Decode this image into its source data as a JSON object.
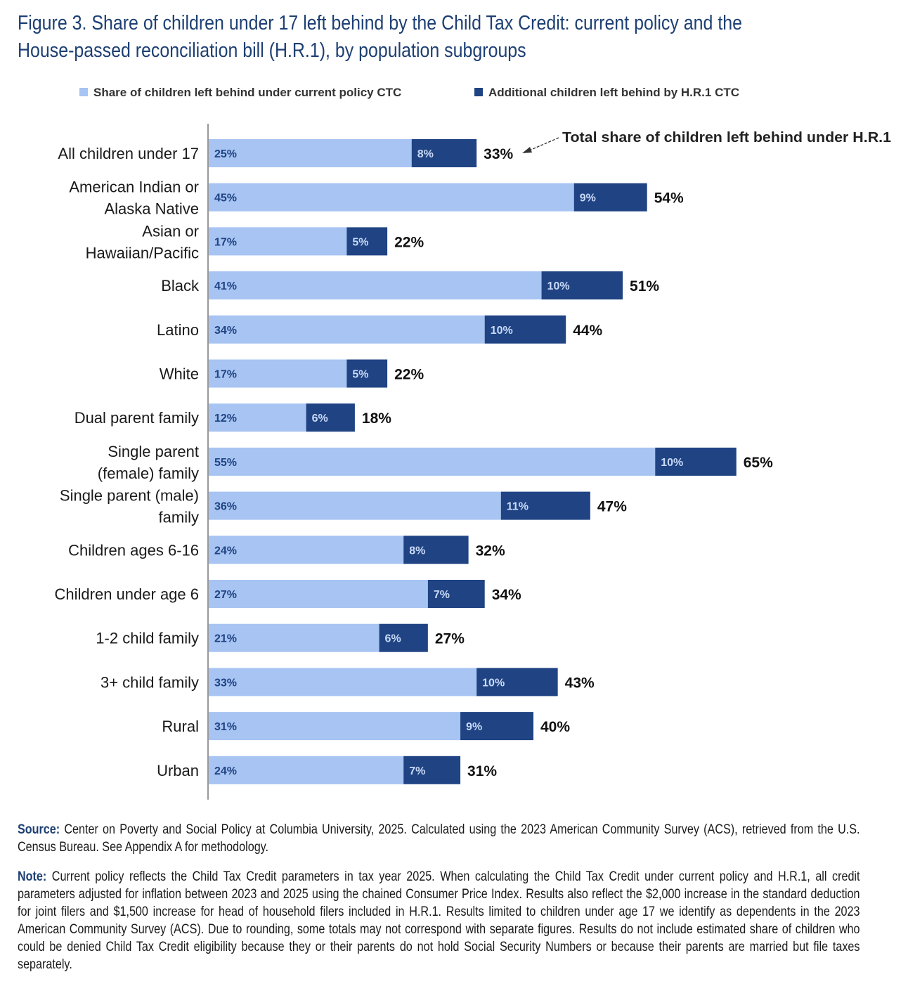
{
  "figure": {
    "title_line1": "Figure 3. Share of children under 17 left behind by the Child Tax Credit: current policy and the",
    "title_line2": "House-passed reconciliation bill (H.R.1), by population subgroups"
  },
  "chart_data": {
    "type": "bar",
    "stacked": true,
    "orientation": "horizontal",
    "categories": [
      [
        "All children under 17"
      ],
      [
        "American Indian or",
        "Alaska Native"
      ],
      [
        "Asian or",
        "Hawaiian/Pacific"
      ],
      [
        "Black"
      ],
      [
        "Latino"
      ],
      [
        "White"
      ],
      [
        "Dual parent family"
      ],
      [
        "Single parent",
        "(female) family"
      ],
      [
        "Single parent (male)",
        "family"
      ],
      [
        "Children ages 6-16"
      ],
      [
        "Children under age 6"
      ],
      [
        "1-2 child family"
      ],
      [
        "3+ child family"
      ],
      [
        "Rural"
      ],
      [
        "Urban"
      ]
    ],
    "series": [
      {
        "name": "Share of children left behind under current policy CTC",
        "color": "#a7c4f2",
        "values": [
          25,
          45,
          17,
          41,
          34,
          17,
          12,
          55,
          36,
          24,
          27,
          21,
          33,
          31,
          24
        ],
        "labels": [
          "25%",
          "45%",
          "17%",
          "41%",
          "34%",
          "17%",
          "12%",
          "55%",
          "36%",
          "24%",
          "27%",
          "21%",
          "33%",
          "31%",
          "24%"
        ]
      },
      {
        "name": "Additional children left behind by H.R.1 CTC",
        "color": "#1f4383",
        "values": [
          8,
          9,
          5,
          10,
          10,
          5,
          6,
          10,
          11,
          8,
          7,
          6,
          10,
          9,
          7
        ],
        "labels": [
          "8%",
          "9%",
          "5%",
          "10%",
          "10%",
          "5%",
          "6%",
          "10%",
          "11%",
          "8%",
          "7%",
          "6%",
          "10%",
          "9%",
          "7%"
        ]
      }
    ],
    "totals": [
      "33%",
      "54%",
      "22%",
      "51%",
      "44%",
      "22%",
      "18%",
      "65%",
      "47%",
      "32%",
      "34%",
      "27%",
      "43%",
      "40%",
      "31%"
    ],
    "annotation": "Total share of children left behind under H.R.1",
    "legend_position": "top",
    "grid": false
  },
  "notes": {
    "source_label": "Source:",
    "source_text": " Center on Poverty and Social Policy at Columbia University, 2025. Calculated using the 2023 American Community Survey (ACS), retrieved from the U.S. Census Bureau. See Appendix A for methodology.",
    "note_label": "Note:",
    "note_text": " Current policy reflects the Child Tax Credit parameters in tax year 2025. When calculating the Child Tax Credit under current policy and H.R.1, all credit parameters adjusted for inflation between 2023 and 2025 using the chained Consumer Price Index. Results also reflect the $2,000 increase in the standard deduction for joint filers and $1,500 increase for head of household filers included in H.R.1. Results limited to children under age 17 we identify as dependents in the 2023 American Community Survey (ACS). Due to rounding, some totals may not correspond with separate figures. Results do not include estimated share of children who could be denied Child Tax Credit eligibility because they or their parents do not hold Social Security Numbers or because their parents are married but file taxes separately."
  }
}
